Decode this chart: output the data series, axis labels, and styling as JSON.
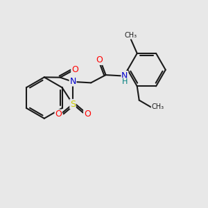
{
  "background_color": "#e8e8e8",
  "bond_color": "#1a1a1a",
  "atom_colors": {
    "O": "#ff0000",
    "N": "#0000cc",
    "S": "#cccc00",
    "H": "#008080",
    "C": "#1a1a1a"
  },
  "font_size_atoms": 9,
  "figsize": [
    3.0,
    3.0
  ],
  "dpi": 100
}
